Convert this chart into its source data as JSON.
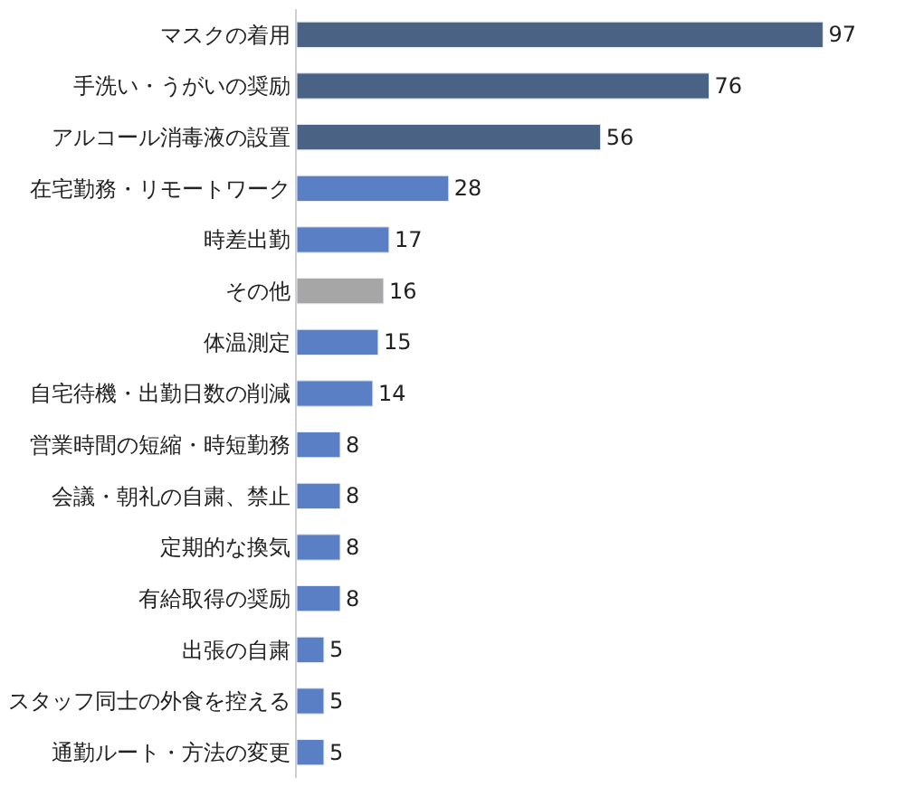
{
  "chart_data": {
    "type": "bar",
    "orientation": "horizontal",
    "data_labels": true,
    "legend": false,
    "categories": [
      "マスクの着用",
      "手洗い・うがいの奨励",
      "アルコール消毒液の設置",
      "在宅勤務・リモートワーク",
      "時差出勤",
      "その他",
      "体温測定",
      "自宅待機・出勤日数の削減",
      "営業時間の短縮・時短勤務",
      "会議・朝礼の自粛、禁止",
      "定期的な換気",
      "有給取得の奨励",
      "出張の自粛",
      "スタッフ同士の外食を控える",
      "通勤ルート・方法の変更"
    ],
    "values": [
      97,
      76,
      56,
      28,
      17,
      16,
      15,
      14,
      8,
      8,
      8,
      8,
      5,
      5,
      5
    ],
    "colors": [
      "#4a6385",
      "#4a6385",
      "#4a6385",
      "#5b7fc4",
      "#5b7fc4",
      "#a6a6a6",
      "#5b7fc4",
      "#5b7fc4",
      "#5b7fc4",
      "#5b7fc4",
      "#5b7fc4",
      "#5b7fc4",
      "#5b7fc4",
      "#5b7fc4",
      "#5b7fc4"
    ]
  }
}
